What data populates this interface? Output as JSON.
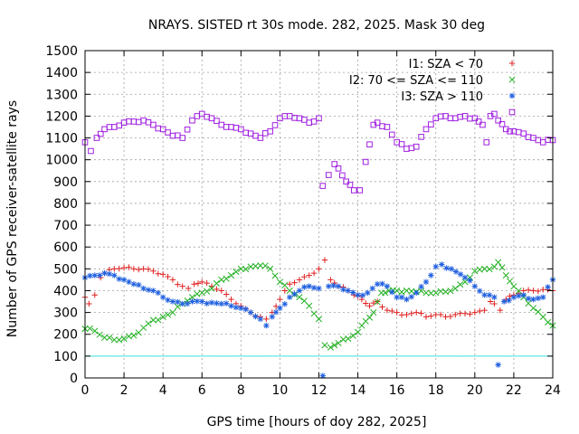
{
  "chart_data": {
    "type": "scatter",
    "title": "NRAYS. SISTED rt 30s mode. 282, 2025. Mask 30 deg",
    "xlabel": "GPS time [hours of doy 282, 2025]",
    "ylabel": "Number of GPS receiver-satellite rays",
    "xlim": [
      0,
      24
    ],
    "ylim": [
      0,
      1500
    ],
    "x_ticks": [
      0,
      2,
      4,
      6,
      8,
      10,
      12,
      14,
      16,
      18,
      20,
      22,
      24
    ],
    "y_ticks": [
      0,
      100,
      200,
      300,
      400,
      500,
      600,
      700,
      800,
      900,
      1000,
      1100,
      1200,
      1300,
      1400,
      1500
    ],
    "grid": true,
    "reference_line": {
      "y": 100,
      "color": "#40e0e0"
    },
    "legend_position": "top-right",
    "series": [
      {
        "name": "I1: SZA < 70",
        "marker": "plus",
        "color": "#e02020",
        "points": [
          [
            0.0,
            370
          ],
          [
            0.2,
            340
          ],
          [
            0.5,
            380
          ],
          [
            0.8,
            460
          ],
          [
            1.0,
            480
          ],
          [
            1.5,
            500
          ],
          [
            2.0,
            505
          ],
          [
            2.5,
            500
          ],
          [
            3.0,
            500
          ],
          [
            3.5,
            490
          ],
          [
            4.0,
            475
          ],
          [
            4.5,
            450
          ],
          [
            5.0,
            420
          ],
          [
            5.3,
            410
          ],
          [
            5.6,
            430
          ],
          [
            6.0,
            440
          ],
          [
            6.5,
            420
          ],
          [
            7.0,
            400
          ],
          [
            7.5,
            360
          ],
          [
            8.0,
            330
          ],
          [
            8.5,
            300
          ],
          [
            9.0,
            280
          ],
          [
            9.3,
            270
          ],
          [
            9.6,
            300
          ],
          [
            10.0,
            360
          ],
          [
            10.5,
            430
          ],
          [
            11.0,
            450
          ],
          [
            11.5,
            470
          ],
          [
            12.0,
            500
          ],
          [
            12.3,
            540
          ],
          [
            12.6,
            450
          ],
          [
            13.0,
            420
          ],
          [
            13.5,
            400
          ],
          [
            13.8,
            380
          ],
          [
            14.2,
            360
          ],
          [
            14.6,
            330
          ],
          [
            15.0,
            350
          ],
          [
            15.5,
            310
          ],
          [
            16.0,
            300
          ],
          [
            16.5,
            290
          ],
          [
            17.0,
            300
          ],
          [
            17.5,
            280
          ],
          [
            18.0,
            290
          ],
          [
            18.5,
            280
          ],
          [
            19.0,
            290
          ],
          [
            19.5,
            295
          ],
          [
            20.0,
            300
          ],
          [
            20.5,
            310
          ],
          [
            20.8,
            350
          ],
          [
            21.0,
            340
          ],
          [
            21.3,
            310
          ],
          [
            21.6,
            360
          ],
          [
            22.0,
            380
          ],
          [
            22.5,
            400
          ],
          [
            23.0,
            400
          ],
          [
            23.5,
            405
          ],
          [
            24.0,
            400
          ]
        ]
      },
      {
        "name": "I2: 70 <= SZA <= 110",
        "marker": "cross",
        "color": "#20b020",
        "points": [
          [
            0.0,
            225
          ],
          [
            0.5,
            215
          ],
          [
            1.0,
            185
          ],
          [
            1.5,
            175
          ],
          [
            2.0,
            180
          ],
          [
            2.5,
            195
          ],
          [
            3.0,
            230
          ],
          [
            3.5,
            265
          ],
          [
            4.0,
            280
          ],
          [
            4.5,
            300
          ],
          [
            5.0,
            340
          ],
          [
            5.5,
            370
          ],
          [
            6.0,
            390
          ],
          [
            6.5,
            410
          ],
          [
            7.0,
            450
          ],
          [
            7.5,
            470
          ],
          [
            8.0,
            500
          ],
          [
            8.5,
            510
          ],
          [
            9.0,
            515
          ],
          [
            9.5,
            500
          ],
          [
            10.0,
            440
          ],
          [
            10.5,
            400
          ],
          [
            11.0,
            370
          ],
          [
            11.5,
            330
          ],
          [
            12.0,
            270
          ],
          [
            12.3,
            150
          ],
          [
            12.6,
            140
          ],
          [
            13.0,
            160
          ],
          [
            13.5,
            180
          ],
          [
            14.0,
            210
          ],
          [
            14.4,
            260
          ],
          [
            14.8,
            300
          ],
          [
            15.2,
            390
          ],
          [
            15.6,
            400
          ],
          [
            16.0,
            400
          ],
          [
            16.5,
            400
          ],
          [
            17.0,
            395
          ],
          [
            17.5,
            390
          ],
          [
            18.0,
            390
          ],
          [
            18.5,
            395
          ],
          [
            19.0,
            410
          ],
          [
            19.5,
            440
          ],
          [
            20.0,
            490
          ],
          [
            20.5,
            500
          ],
          [
            21.0,
            510
          ],
          [
            21.2,
            530
          ],
          [
            21.6,
            470
          ],
          [
            22.0,
            420
          ],
          [
            22.5,
            370
          ],
          [
            23.0,
            320
          ],
          [
            23.5,
            280
          ],
          [
            24.0,
            240
          ]
        ]
      },
      {
        "name": "I3: SZA > 110",
        "marker": "star",
        "color": "#2060e0",
        "points": [
          [
            0.0,
            460
          ],
          [
            0.5,
            470
          ],
          [
            1.0,
            480
          ],
          [
            1.5,
            470
          ],
          [
            2.0,
            450
          ],
          [
            2.5,
            430
          ],
          [
            3.0,
            410
          ],
          [
            3.5,
            400
          ],
          [
            4.0,
            370
          ],
          [
            4.5,
            350
          ],
          [
            5.0,
            340
          ],
          [
            5.5,
            350
          ],
          [
            6.0,
            350
          ],
          [
            6.5,
            345
          ],
          [
            7.0,
            340
          ],
          [
            7.5,
            330
          ],
          [
            8.0,
            320
          ],
          [
            8.5,
            300
          ],
          [
            9.0,
            270
          ],
          [
            9.3,
            240
          ],
          [
            9.6,
            280
          ],
          [
            10.0,
            320
          ],
          [
            10.5,
            370
          ],
          [
            11.0,
            400
          ],
          [
            11.5,
            420
          ],
          [
            12.0,
            410
          ],
          [
            12.2,
            10
          ],
          [
            12.5,
            420
          ],
          [
            13.0,
            420
          ],
          [
            13.5,
            400
          ],
          [
            14.0,
            380
          ],
          [
            14.5,
            390
          ],
          [
            15.0,
            430
          ],
          [
            15.5,
            420
          ],
          [
            16.0,
            370
          ],
          [
            16.5,
            360
          ],
          [
            17.0,
            390
          ],
          [
            17.5,
            440
          ],
          [
            18.0,
            510
          ],
          [
            18.3,
            520
          ],
          [
            18.8,
            500
          ],
          [
            19.5,
            460
          ],
          [
            20.0,
            420
          ],
          [
            20.5,
            380
          ],
          [
            21.0,
            370
          ],
          [
            21.2,
            60
          ],
          [
            21.5,
            350
          ],
          [
            22.0,
            370
          ],
          [
            22.5,
            380
          ],
          [
            23.0,
            360
          ],
          [
            23.5,
            370
          ],
          [
            24.0,
            450
          ]
        ]
      },
      {
        "name": "",
        "marker": "square",
        "color": "#a020e0",
        "points": [
          [
            0.0,
            1080
          ],
          [
            0.3,
            1040
          ],
          [
            0.6,
            1100
          ],
          [
            1.0,
            1140
          ],
          [
            1.5,
            1150
          ],
          [
            2.0,
            1170
          ],
          [
            2.5,
            1175
          ],
          [
            3.0,
            1180
          ],
          [
            3.5,
            1160
          ],
          [
            4.0,
            1140
          ],
          [
            4.5,
            1110
          ],
          [
            5.0,
            1100
          ],
          [
            5.5,
            1180
          ],
          [
            6.0,
            1210
          ],
          [
            6.5,
            1190
          ],
          [
            7.0,
            1160
          ],
          [
            7.5,
            1150
          ],
          [
            8.0,
            1140
          ],
          [
            8.5,
            1120
          ],
          [
            9.0,
            1100
          ],
          [
            9.5,
            1130
          ],
          [
            10.0,
            1190
          ],
          [
            10.5,
            1200
          ],
          [
            11.0,
            1190
          ],
          [
            11.5,
            1170
          ],
          [
            12.0,
            1190
          ],
          [
            12.2,
            880
          ],
          [
            12.5,
            930
          ],
          [
            12.8,
            980
          ],
          [
            13.0,
            960
          ],
          [
            13.4,
            900
          ],
          [
            13.8,
            860
          ],
          [
            14.1,
            860
          ],
          [
            14.4,
            990
          ],
          [
            14.8,
            1160
          ],
          [
            15.0,
            1170
          ],
          [
            15.5,
            1150
          ],
          [
            16.0,
            1080
          ],
          [
            16.5,
            1050
          ],
          [
            17.0,
            1060
          ],
          [
            17.5,
            1140
          ],
          [
            18.0,
            1190
          ],
          [
            18.5,
            1200
          ],
          [
            19.0,
            1190
          ],
          [
            19.5,
            1200
          ],
          [
            20.0,
            1190
          ],
          [
            20.4,
            1160
          ],
          [
            20.6,
            1080
          ],
          [
            20.8,
            1200
          ],
          [
            21.0,
            1210
          ],
          [
            21.2,
            1180
          ],
          [
            21.6,
            1140
          ],
          [
            22.0,
            1130
          ],
          [
            22.5,
            1120
          ],
          [
            23.0,
            1100
          ],
          [
            23.5,
            1080
          ],
          [
            24.0,
            1090
          ]
        ]
      }
    ]
  }
}
